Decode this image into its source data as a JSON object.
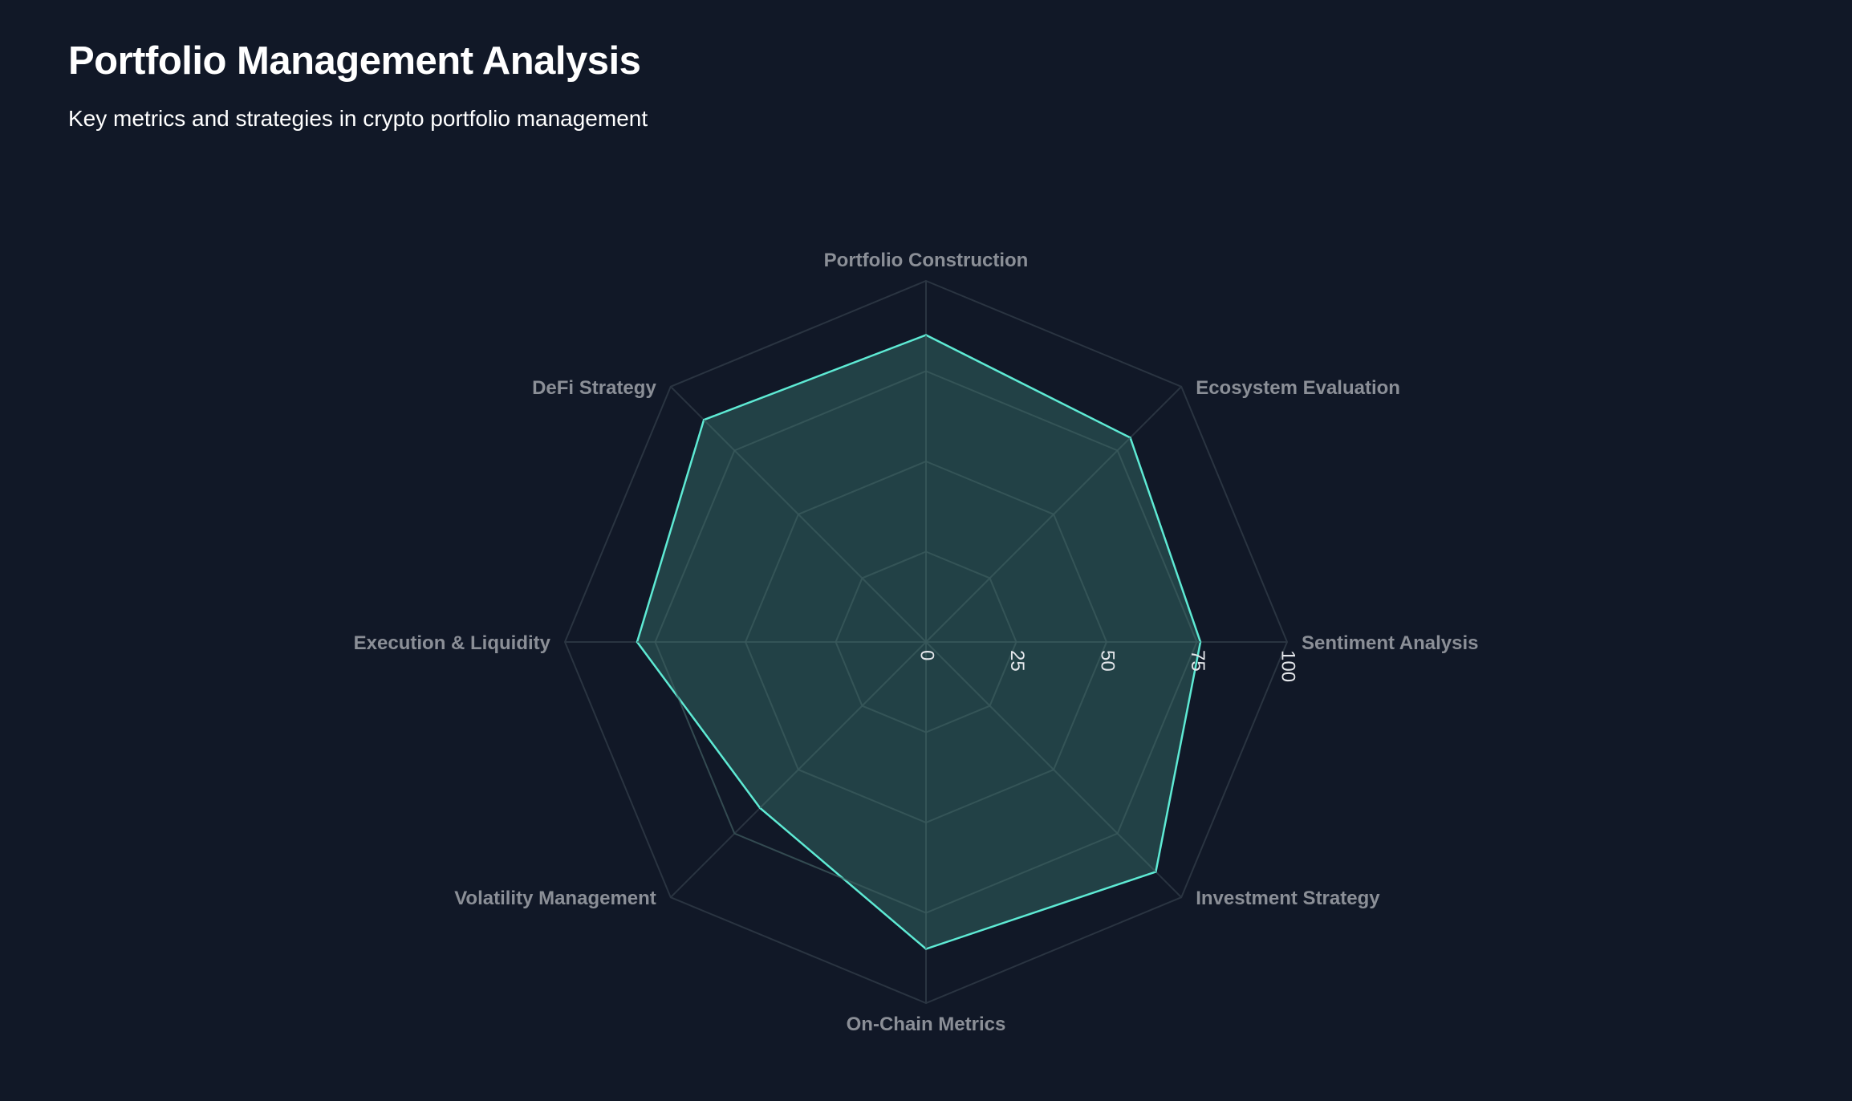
{
  "header": {
    "title": "Portfolio Management Analysis",
    "subtitle": "Key metrics and strategies in crypto portfolio management"
  },
  "colors": {
    "background": "#111827",
    "series_stroke": "#5eead4",
    "series_fill": "#2f5d5c",
    "grid": "#2a3441",
    "axis_label": "#8b8f97",
    "tick_label": "#e5e7eb"
  },
  "chart_data": {
    "type": "radar",
    "categories": [
      "Portfolio Construction",
      "Ecosystem Evaluation",
      "Sentiment Analysis",
      "Investment Strategy",
      "On-Chain Metrics",
      "Volatility Management",
      "Execution & Liquidity",
      "DeFi Strategy"
    ],
    "series": [
      {
        "values": [
          85,
          80,
          76,
          90,
          85,
          65,
          80,
          87
        ]
      }
    ],
    "rlim": [
      0,
      100
    ],
    "ticks": [
      "0",
      "25",
      "50",
      "75",
      "100"
    ],
    "grid": true,
    "legend": "none"
  }
}
